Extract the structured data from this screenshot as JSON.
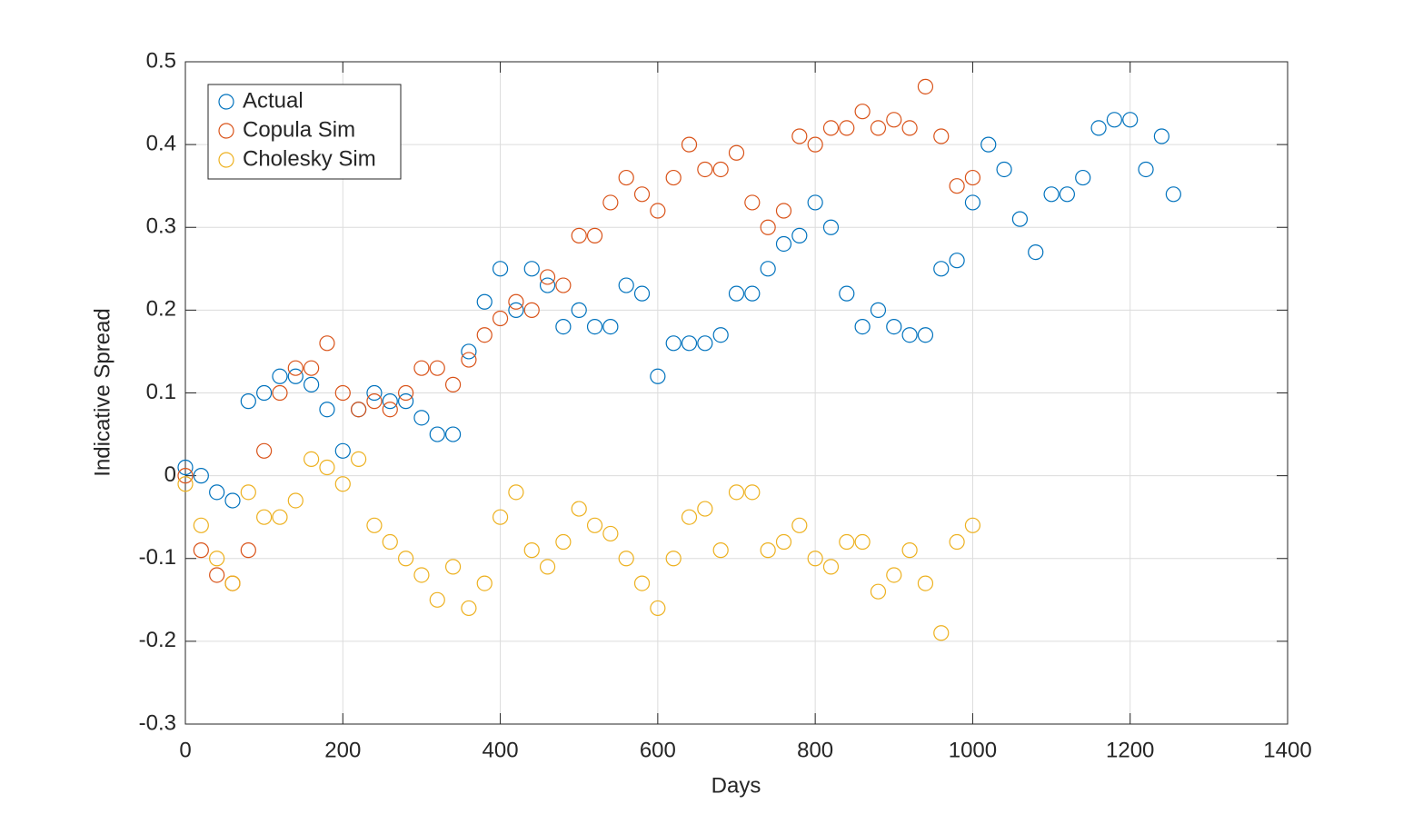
{
  "chart_data": {
    "type": "scatter",
    "xlabel": "Days",
    "ylabel": "Indicative Spread",
    "xlim": [
      0,
      1400
    ],
    "xticks": [
      0,
      200,
      400,
      600,
      800,
      1000,
      1200,
      1400
    ],
    "ylim": [
      -0.3,
      0.5
    ],
    "yticks": [
      -0.3,
      -0.2,
      -0.1,
      0,
      0.1,
      0.2,
      0.3,
      0.4,
      0.5
    ],
    "grid": true,
    "legend": "northwest",
    "series": [
      {
        "name": "Actual",
        "color": "#0072BD",
        "x": [
          0,
          20,
          40,
          60,
          80,
          100,
          120,
          140,
          160,
          180,
          200,
          220,
          240,
          260,
          280,
          300,
          320,
          340,
          360,
          380,
          400,
          420,
          440,
          460,
          480,
          500,
          520,
          540,
          560,
          580,
          600,
          620,
          640,
          660,
          680,
          700,
          720,
          740,
          760,
          780,
          800,
          820,
          840,
          860,
          880,
          900,
          920,
          940,
          960,
          980,
          1000,
          1020,
          1040,
          1060,
          1080,
          1100,
          1120,
          1140,
          1160,
          1180,
          1200,
          1220,
          1240,
          1255
        ],
        "values": [
          0.01,
          0.0,
          -0.02,
          -0.03,
          0.09,
          0.1,
          0.12,
          0.12,
          0.11,
          0.08,
          0.03,
          0.08,
          0.1,
          0.09,
          0.09,
          0.07,
          0.05,
          0.05,
          0.15,
          0.21,
          0.25,
          0.2,
          0.25,
          0.23,
          0.18,
          0.2,
          0.18,
          0.18,
          0.23,
          0.22,
          0.12,
          0.16,
          0.16,
          0.16,
          0.17,
          0.22,
          0.22,
          0.25,
          0.28,
          0.29,
          0.33,
          0.3,
          0.22,
          0.18,
          0.2,
          0.18,
          0.17,
          0.17,
          0.25,
          0.26,
          0.33,
          0.4,
          0.37,
          0.31,
          0.27,
          0.34,
          0.34,
          0.36,
          0.42,
          0.43,
          0.43,
          0.37,
          0.41,
          0.34
        ]
      },
      {
        "name": "Copula Sim",
        "color": "#D95319",
        "x": [
          0,
          20,
          40,
          60,
          80,
          100,
          120,
          140,
          160,
          180,
          200,
          220,
          240,
          260,
          280,
          300,
          320,
          340,
          360,
          380,
          400,
          420,
          440,
          460,
          480,
          500,
          520,
          540,
          560,
          580,
          600,
          620,
          640,
          660,
          680,
          700,
          720,
          740,
          760,
          780,
          800,
          820,
          840,
          860,
          880,
          900,
          920,
          940,
          960,
          980,
          1000
        ],
        "values": [
          0.0,
          -0.09,
          -0.12,
          -0.13,
          -0.09,
          0.03,
          0.1,
          0.13,
          0.13,
          0.16,
          0.1,
          0.08,
          0.09,
          0.08,
          0.1,
          0.13,
          0.13,
          0.11,
          0.14,
          0.17,
          0.19,
          0.21,
          0.2,
          0.24,
          0.23,
          0.29,
          0.29,
          0.33,
          0.36,
          0.34,
          0.32,
          0.36,
          0.4,
          0.37,
          0.37,
          0.39,
          0.33,
          0.3,
          0.32,
          0.41,
          0.4,
          0.42,
          0.42,
          0.44,
          0.42,
          0.43,
          0.42,
          0.47,
          0.41,
          0.35,
          0.36
        ]
      },
      {
        "name": "Cholesky Sim",
        "color": "#EDB120",
        "x": [
          0,
          20,
          40,
          60,
          80,
          100,
          120,
          140,
          160,
          180,
          200,
          220,
          240,
          260,
          280,
          300,
          320,
          340,
          360,
          380,
          400,
          420,
          440,
          460,
          480,
          500,
          520,
          540,
          560,
          580,
          600,
          620,
          640,
          660,
          680,
          700,
          720,
          740,
          760,
          780,
          800,
          820,
          840,
          860,
          880,
          900,
          920,
          940,
          960,
          980,
          1000
        ],
        "values": [
          -0.01,
          -0.06,
          -0.1,
          -0.13,
          -0.02,
          -0.05,
          -0.05,
          -0.03,
          0.02,
          0.01,
          -0.01,
          0.02,
          -0.06,
          -0.08,
          -0.1,
          -0.12,
          -0.15,
          -0.11,
          -0.16,
          -0.13,
          -0.05,
          -0.02,
          -0.09,
          -0.11,
          -0.08,
          -0.04,
          -0.06,
          -0.07,
          -0.1,
          -0.13,
          -0.16,
          -0.1,
          -0.05,
          -0.04,
          -0.09,
          -0.02,
          -0.02,
          -0.09,
          -0.08,
          -0.06,
          -0.1,
          -0.11,
          -0.08,
          -0.08,
          -0.14,
          -0.12,
          -0.09,
          -0.13,
          -0.19,
          -0.08,
          -0.06
        ]
      }
    ]
  }
}
